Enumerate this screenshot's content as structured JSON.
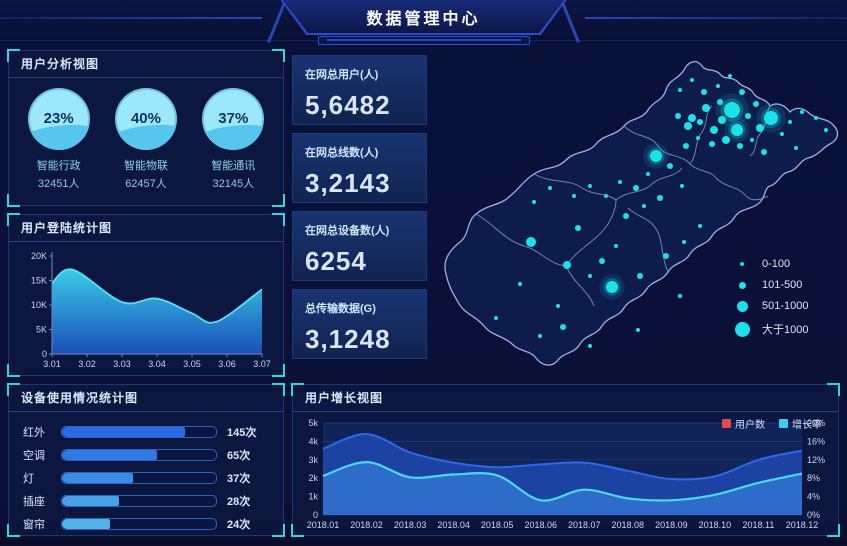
{
  "header": {
    "title": "数据管理中心"
  },
  "panels": {
    "user_analysis": {
      "title": "用户分析视图"
    },
    "login_stats": {
      "title": "用户登陆统计图"
    },
    "device_usage": {
      "title": "设备使用情况统计图"
    },
    "user_growth": {
      "title": "用户增长视图"
    }
  },
  "stats": [
    {
      "label": "在网总用户(人)",
      "value": "5,6482"
    },
    {
      "label": "在网总线数(人)",
      "value": "3,2143"
    },
    {
      "label": "在网总设备数(人)",
      "value": "6254"
    },
    {
      "label": "总传输数据(G)",
      "value": "3,1248"
    }
  ],
  "map": {
    "dot_color": "#1ae2ea",
    "legend": [
      {
        "label": "0-100",
        "d": 4
      },
      {
        "label": "101-500",
        "d": 7
      },
      {
        "label": "501-1000",
        "d": 11
      },
      {
        "label": "大于1000",
        "d": 15
      }
    ],
    "points": [
      [
        302,
        64,
        8
      ],
      [
        341,
        72,
        7
      ],
      [
        307,
        84,
        6
      ],
      [
        226,
        110,
        6
      ],
      [
        182,
        241,
        6
      ],
      [
        101,
        196,
        5
      ],
      [
        137,
        219,
        4
      ],
      [
        276,
        62,
        4
      ],
      [
        262,
        72,
        4
      ],
      [
        292,
        74,
        4
      ],
      [
        330,
        82,
        4
      ],
      [
        258,
        80,
        4
      ],
      [
        284,
        84,
        4
      ],
      [
        296,
        94,
        4
      ],
      [
        250,
        44,
        2
      ],
      [
        262,
        34,
        2
      ],
      [
        274,
        46,
        3
      ],
      [
        288,
        40,
        2
      ],
      [
        300,
        30,
        2
      ],
      [
        312,
        46,
        3
      ],
      [
        326,
        58,
        3
      ],
      [
        318,
        70,
        3
      ],
      [
        290,
        56,
        3
      ],
      [
        248,
        70,
        3
      ],
      [
        270,
        76,
        3
      ],
      [
        282,
        98,
        3
      ],
      [
        268,
        92,
        2
      ],
      [
        256,
        100,
        3
      ],
      [
        310,
        100,
        3
      ],
      [
        322,
        94,
        2
      ],
      [
        334,
        106,
        3
      ],
      [
        352,
        88,
        2
      ],
      [
        360,
        76,
        2
      ],
      [
        372,
        66,
        2
      ],
      [
        386,
        72,
        2
      ],
      [
        396,
        84,
        2
      ],
      [
        366,
        102,
        2
      ],
      [
        240,
        120,
        3
      ],
      [
        218,
        128,
        2
      ],
      [
        206,
        142,
        3
      ],
      [
        190,
        136,
        2
      ],
      [
        176,
        150,
        2
      ],
      [
        160,
        140,
        2
      ],
      [
        144,
        150,
        2
      ],
      [
        196,
        170,
        3
      ],
      [
        214,
        160,
        2
      ],
      [
        230,
        152,
        3
      ],
      [
        252,
        140,
        2
      ],
      [
        120,
        142,
        2
      ],
      [
        104,
        156,
        2
      ],
      [
        148,
        182,
        3
      ],
      [
        160,
        230,
        2
      ],
      [
        210,
        230,
        3
      ],
      [
        236,
        210,
        3
      ],
      [
        254,
        196,
        2
      ],
      [
        270,
        180,
        2
      ],
      [
        128,
        260,
        2
      ],
      [
        90,
        238,
        2
      ],
      [
        66,
        272,
        2
      ],
      [
        110,
        290,
        2
      ],
      [
        160,
        300,
        2
      ],
      [
        133,
        281,
        3
      ],
      [
        208,
        284,
        2
      ],
      [
        250,
        250,
        2
      ],
      [
        186,
        200,
        2
      ],
      [
        172,
        215,
        3
      ]
    ]
  },
  "colors": {
    "accent_cyan": "#2fd7e2",
    "panel_border": "#1c366f",
    "legend_red": "#e14b4b",
    "legend_cyan": "#3ecdf0"
  },
  "chart_data": [
    {
      "type": "gauge",
      "title": "用户分析视图",
      "items": [
        {
          "label": "智能行政",
          "percent": 23,
          "count": "32451人"
        },
        {
          "label": "智能物联",
          "percent": 40,
          "count": "62457人"
        },
        {
          "label": "智能通讯",
          "percent": 37,
          "count": "32145人"
        }
      ]
    },
    {
      "type": "area",
      "title": "用户登陆统计图",
      "x": [
        3.01,
        3.016,
        3.03,
        3.04,
        3.05,
        3.057,
        3.07
      ],
      "y": [
        14.5,
        17.2,
        10.6,
        11.3,
        8.3,
        6.6,
        13.2
      ],
      "xlim": [
        3.01,
        3.07
      ],
      "ylim": [
        0,
        20
      ],
      "xticks": [
        "3.01",
        "3.02",
        "3.03",
        "3.04",
        "3.05",
        "3.06",
        "3.07"
      ],
      "yticks": [
        "0",
        "5K",
        "10K",
        "15K",
        "20K"
      ],
      "line_color": "#55e2f5",
      "fill_top": "#3ed6ee",
      "fill_bottom": "#1a57c8"
    },
    {
      "type": "bar",
      "orientation": "horizontal",
      "title": "设备使用情况统计图",
      "categories": [
        "红外",
        "空调",
        "灯",
        "插座",
        "窗帘"
      ],
      "values": [
        145,
        65,
        37,
        28,
        24
      ],
      "value_labels": [
        "145次",
        "65次",
        "37次",
        "28次",
        "24次"
      ],
      "track_fill_pct": [
        80,
        62,
        46,
        37,
        31
      ],
      "bar_colors": [
        "#2b6ce4",
        "#3078e2",
        "#3a8ce4",
        "#47a3e6",
        "#52b4e9"
      ]
    },
    {
      "type": "area",
      "subtype": "dual-axis",
      "title": "用户增长视图",
      "categories": [
        "2018.01",
        "2018.02",
        "2018.03",
        "2018.04",
        "2018.05",
        "2018.06",
        "2018.07",
        "2018.08",
        "2018.09",
        "2018.10",
        "2018.11",
        "2018.12"
      ],
      "series": [
        {
          "name": "用户数",
          "axis": "left",
          "unit": "k",
          "line_color": "#2d68e6",
          "fill_color": "#1d47a8",
          "values": [
            3.6,
            4.4,
            3.4,
            2.85,
            2.6,
            2.75,
            2.85,
            2.4,
            1.95,
            2.1,
            3.0,
            3.5
          ]
        },
        {
          "name": "增长率",
          "axis": "right",
          "unit": "%",
          "line_color": "#4ad9f6",
          "fill_color": "#2f6fcc",
          "values": [
            8.5,
            11.5,
            8.2,
            8.8,
            8.6,
            3.2,
            5.5,
            3.6,
            3.2,
            4.4,
            7.0,
            9.0
          ]
        }
      ],
      "ylim_left": [
        0,
        5
      ],
      "yticks_left": [
        "0",
        "1k",
        "2k",
        "3k",
        "4k",
        "5k"
      ],
      "ylim_right": [
        0,
        20
      ],
      "yticks_right": [
        "0%",
        "4%",
        "8%",
        "12%",
        "16%",
        "20%"
      ],
      "legend": [
        {
          "label": "用户数",
          "color": "#e14b4b"
        },
        {
          "label": "增长率",
          "color": "#3ecdf0"
        }
      ]
    }
  ]
}
